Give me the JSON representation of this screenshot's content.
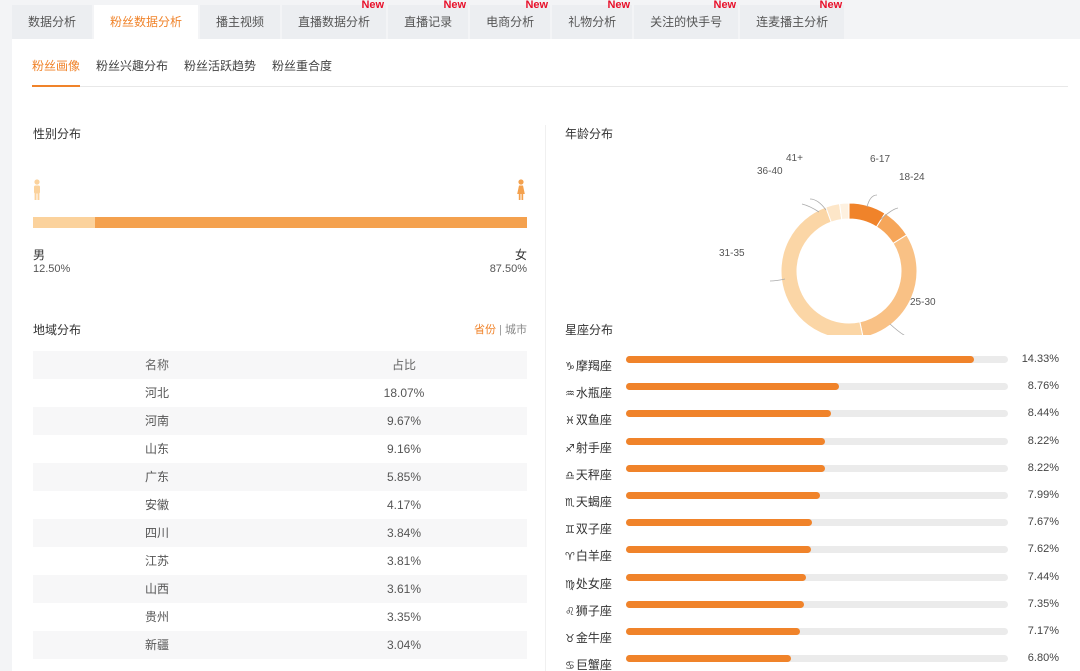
{
  "top_tabs": [
    {
      "label": "数据分析",
      "new": ""
    },
    {
      "label": "粉丝数据分析",
      "new": ""
    },
    {
      "label": "播主视频",
      "new": ""
    },
    {
      "label": "直播数据分析",
      "new": "New"
    },
    {
      "label": "直播记录",
      "new": "New"
    },
    {
      "label": "电商分析",
      "new": "New"
    },
    {
      "label": "礼物分析",
      "new": "New"
    },
    {
      "label": "关注的快手号",
      "new": "New"
    },
    {
      "label": "连麦播主分析",
      "new": "New"
    }
  ],
  "sub_tabs": [
    "粉丝画像",
    "粉丝兴趣分布",
    "粉丝活跃趋势",
    "粉丝重合度"
  ],
  "gender": {
    "title": "性别分布",
    "male_label": "男",
    "male_value": "12.50%",
    "male_fraction": 0.125,
    "female_label": "女",
    "female_value": "87.50%"
  },
  "age": {
    "title": "年龄分布",
    "segments": [
      {
        "label": "6-17",
        "color": "#f0832a"
      },
      {
        "label": "18-24",
        "color": "#f6a65a"
      },
      {
        "label": "25-30",
        "color": "#f9c185"
      },
      {
        "label": "31-35",
        "color": "#fbd6a6"
      },
      {
        "label": "36-40",
        "color": "#fde6c8"
      },
      {
        "label": "41+",
        "color": "#fef1e0"
      }
    ]
  },
  "region": {
    "title": "地域分布",
    "toggle_province": "省份",
    "toggle_sep": "|",
    "toggle_city": "城市",
    "col_name": "名称",
    "col_share": "占比",
    "rows": [
      {
        "name": "河北",
        "share": "18.07%"
      },
      {
        "name": "河南",
        "share": "9.67%"
      },
      {
        "name": "山东",
        "share": "9.16%"
      },
      {
        "name": "广东",
        "share": "5.85%"
      },
      {
        "name": "安徽",
        "share": "4.17%"
      },
      {
        "name": "四川",
        "share": "3.84%"
      },
      {
        "name": "江苏",
        "share": "3.81%"
      },
      {
        "name": "山西",
        "share": "3.61%"
      },
      {
        "name": "贵州",
        "share": "3.35%"
      },
      {
        "name": "新疆",
        "share": "3.04%"
      }
    ]
  },
  "zodiac": {
    "title": "星座分布",
    "items": [
      {
        "symbol": "♑",
        "name": "摩羯座",
        "value": "14.33%",
        "pct": 14.33
      },
      {
        "symbol": "♒",
        "name": "水瓶座",
        "value": "8.76%",
        "pct": 8.76
      },
      {
        "symbol": "♓",
        "name": "双鱼座",
        "value": "8.44%",
        "pct": 8.44
      },
      {
        "symbol": "♐",
        "name": "射手座",
        "value": "8.22%",
        "pct": 8.22
      },
      {
        "symbol": "♎",
        "name": "天秤座",
        "value": "8.22%",
        "pct": 8.22
      },
      {
        "symbol": "♏",
        "name": "天蝎座",
        "value": "7.99%",
        "pct": 7.99
      },
      {
        "symbol": "♊",
        "name": "双子座",
        "value": "7.67%",
        "pct": 7.67
      },
      {
        "symbol": "♈",
        "name": "白羊座",
        "value": "7.62%",
        "pct": 7.62
      },
      {
        "symbol": "♍",
        "name": "处女座",
        "value": "7.44%",
        "pct": 7.44
      },
      {
        "symbol": "♌",
        "name": "狮子座",
        "value": "7.35%",
        "pct": 7.35
      },
      {
        "symbol": "♉",
        "name": "金牛座",
        "value": "7.17%",
        "pct": 7.17
      },
      {
        "symbol": "♋",
        "name": "巨蟹座",
        "value": "6.80%",
        "pct": 6.8
      }
    ]
  },
  "colors": {
    "accent": "#f0832a",
    "badge_new": "#e8102a",
    "female_bar": "#f4a14e",
    "male_bar": "#fbd29c"
  }
}
